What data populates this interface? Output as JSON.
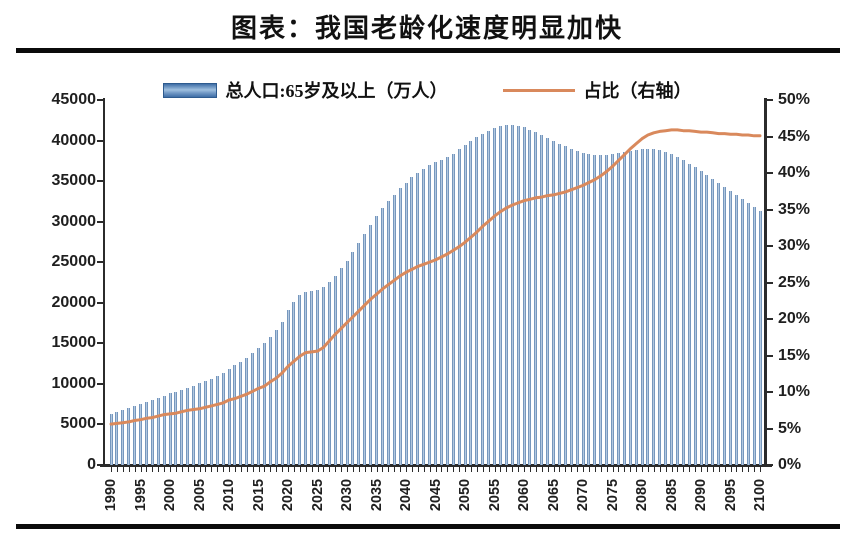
{
  "page": {
    "title": "图表：我国老龄化速度明显加快"
  },
  "chart_data": {
    "type": "bar",
    "title": "图表：我国老龄化速度明显加快",
    "legend_position": "top-center",
    "grid": false,
    "legend": [
      {
        "label": "总人口:65岁及以上（万人）",
        "type": "bar",
        "color": "#4f81bd"
      },
      {
        "label": "占比（右轴）",
        "type": "line",
        "color": "#d9895c"
      }
    ],
    "left_axis": {
      "min": 0,
      "max": 45000,
      "step": 5000,
      "ticks": [
        "45000",
        "40000",
        "35000",
        "30000",
        "25000",
        "20000",
        "15000",
        "10000",
        "5000",
        "0"
      ]
    },
    "right_axis": {
      "min": 0,
      "max": 50,
      "step": 5,
      "ticks": [
        "50%",
        "45%",
        "40%",
        "35%",
        "30%",
        "25%",
        "20%",
        "15%",
        "10%",
        "5%",
        "0%"
      ]
    },
    "x_tick_labels": [
      "1990",
      "1995",
      "2000",
      "2005",
      "2010",
      "2015",
      "2020",
      "2025",
      "2030",
      "2035",
      "2040",
      "2045",
      "2050",
      "2055",
      "2060",
      "2065",
      "2070",
      "2075",
      "2080",
      "2085",
      "2090",
      "2095",
      "2100"
    ],
    "x": [
      1990,
      1991,
      1992,
      1993,
      1994,
      1995,
      1996,
      1997,
      1998,
      1999,
      2000,
      2001,
      2002,
      2003,
      2004,
      2005,
      2006,
      2007,
      2008,
      2009,
      2010,
      2011,
      2012,
      2013,
      2014,
      2015,
      2016,
      2017,
      2018,
      2019,
      2020,
      2021,
      2022,
      2023,
      2024,
      2025,
      2026,
      2027,
      2028,
      2029,
      2030,
      2031,
      2032,
      2033,
      2034,
      2035,
      2036,
      2037,
      2038,
      2039,
      2040,
      2041,
      2042,
      2043,
      2044,
      2045,
      2046,
      2047,
      2048,
      2049,
      2050,
      2051,
      2052,
      2053,
      2054,
      2055,
      2056,
      2057,
      2058,
      2059,
      2060,
      2061,
      2062,
      2063,
      2064,
      2065,
      2066,
      2067,
      2068,
      2069,
      2070,
      2071,
      2072,
      2073,
      2074,
      2075,
      2076,
      2077,
      2078,
      2079,
      2080,
      2081,
      2082,
      2083,
      2084,
      2085,
      2086,
      2087,
      2088,
      2089,
      2090,
      2091,
      2092,
      2093,
      2094,
      2095,
      2096,
      2097,
      2098,
      2099,
      2100
    ],
    "series": [
      {
        "name": "总人口:65岁及以上（万人）",
        "axis": "left",
        "type": "bar",
        "values": [
          6300,
          6550,
          6800,
          7000,
          7250,
          7500,
          7760,
          8030,
          8290,
          8550,
          8820,
          9060,
          9300,
          9540,
          9790,
          10050,
          10300,
          10640,
          10960,
          11310,
          11890,
          12290,
          12710,
          13160,
          13760,
          14390,
          15000,
          15830,
          16660,
          17600,
          19060,
          20060,
          20980,
          21300,
          21400,
          21550,
          21900,
          22550,
          23350,
          24250,
          25200,
          26300,
          27400,
          28500,
          29650,
          30750,
          31650,
          32500,
          33300,
          34100,
          34800,
          35450,
          36050,
          36550,
          36950,
          37300,
          37600,
          37950,
          38400,
          38900,
          39400,
          39900,
          40400,
          40850,
          41200,
          41500,
          41750,
          41900,
          41950,
          41850,
          41650,
          41350,
          41000,
          40650,
          40300,
          39950,
          39600,
          39300,
          39000,
          38750,
          38500,
          38350,
          38250,
          38200,
          38200,
          38300,
          38450,
          38600,
          38750,
          38850,
          38950,
          38950,
          38900,
          38800,
          38600,
          38300,
          37950,
          37550,
          37150,
          36700,
          36250,
          35750,
          35250,
          34750,
          34250,
          33750,
          33250,
          32750,
          32250,
          31750,
          31300
        ]
      },
      {
        "name": "占比（右轴）",
        "axis": "right",
        "type": "line",
        "values": [
          5.6,
          5.7,
          5.8,
          5.9,
          6.1,
          6.2,
          6.4,
          6.5,
          6.7,
          6.9,
          7.0,
          7.1,
          7.3,
          7.5,
          7.6,
          7.7,
          7.9,
          8.1,
          8.3,
          8.5,
          8.9,
          9.1,
          9.4,
          9.7,
          10.1,
          10.5,
          10.8,
          11.4,
          11.9,
          12.6,
          13.5,
          14.2,
          14.9,
          15.4,
          15.5,
          15.6,
          16.1,
          17.0,
          17.9,
          18.7,
          19.5,
          20.3,
          21.1,
          21.9,
          22.7,
          23.4,
          24.1,
          24.7,
          25.3,
          25.9,
          26.4,
          26.8,
          27.2,
          27.5,
          27.8,
          28.1,
          28.5,
          28.9,
          29.4,
          29.9,
          30.5,
          31.2,
          31.9,
          32.7,
          33.4,
          34.1,
          34.7,
          35.2,
          35.6,
          35.9,
          36.2,
          36.4,
          36.6,
          36.7,
          36.9,
          37.0,
          37.2,
          37.4,
          37.7,
          38.0,
          38.3,
          38.7,
          39.1,
          39.6,
          40.2,
          40.9,
          41.7,
          42.5,
          43.3,
          44.0,
          44.7,
          45.2,
          45.5,
          45.7,
          45.8,
          45.9,
          45.9,
          45.8,
          45.8,
          45.7,
          45.6,
          45.6,
          45.5,
          45.4,
          45.4,
          45.3,
          45.3,
          45.2,
          45.2,
          45.1,
          45.1
        ]
      }
    ],
    "style": {
      "bar_edge": "#4e76a6",
      "bar_center": "#c6d9ec",
      "line_color": "#d9895c",
      "axis_color": "#2b2b2b",
      "text_color": "#1f1f1f"
    }
  }
}
